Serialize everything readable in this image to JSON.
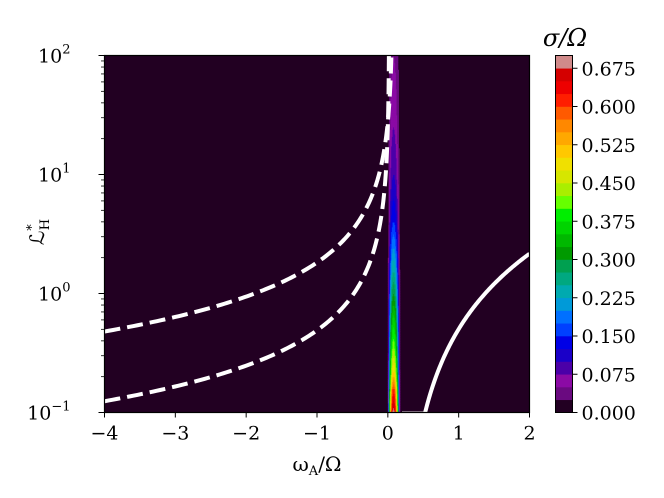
{
  "chart_data": {
    "type": "heatmap",
    "xlabel": "ωA/Ω",
    "ylabel": "ℒ*H",
    "xlim": [
      -4,
      2
    ],
    "ylim": [
      0.1,
      100
    ],
    "yscale": "log",
    "x_ticks": [
      {
        "value": -4,
        "label": "−4"
      },
      {
        "value": -3,
        "label": "−3"
      },
      {
        "value": -2,
        "label": "−2"
      },
      {
        "value": -1,
        "label": "−1"
      },
      {
        "value": 0,
        "label": "0"
      },
      {
        "value": 1,
        "label": "1"
      },
      {
        "value": 2,
        "label": "2"
      }
    ],
    "y_ticks": [
      {
        "value": 0.1,
        "base": "10",
        "exp": "−1"
      },
      {
        "value": 1,
        "base": "10",
        "exp": "0"
      },
      {
        "value": 10,
        "base": "10",
        "exp": "1"
      },
      {
        "value": 100,
        "base": "10",
        "exp": "2"
      }
    ],
    "colorbar": {
      "title": "σ/Ω",
      "min": 0.0,
      "max": 0.7,
      "levels": 28,
      "tick_labels": [
        "0.000",
        "0.075",
        "0.150",
        "0.225",
        "0.300",
        "0.375",
        "0.450",
        "0.525",
        "0.600",
        "0.675"
      ],
      "colors": [
        "#220022",
        "#6a0a80",
        "#8b0aa5",
        "#4b00a8",
        "#1a00c8",
        "#0000e6",
        "#0040ff",
        "#0070ff",
        "#009ad8",
        "#00aab0",
        "#00a880",
        "#00a050",
        "#009a00",
        "#00b800",
        "#00d400",
        "#00ee00",
        "#66ff00",
        "#aaee00",
        "#d6e600",
        "#f0e000",
        "#ffc800",
        "#ffa800",
        "#ff8800",
        "#ff5a00",
        "#ff1e00",
        "#ee0000",
        "#d40000",
        "#d08a8a"
      ]
    },
    "background_value": 0.0,
    "instability_band": {
      "x_left": 0.0,
      "x_right": 0.17,
      "peak_x": 0.08,
      "profile": [
        {
          "L": 0.1,
          "sigma": 0.69
        },
        {
          "L": 0.15,
          "sigma": 0.62
        },
        {
          "L": 0.22,
          "sigma": 0.5
        },
        {
          "L": 0.35,
          "sigma": 0.42
        },
        {
          "L": 0.6,
          "sigma": 0.36
        },
        {
          "L": 1.0,
          "sigma": 0.3
        },
        {
          "L": 2.0,
          "sigma": 0.22
        },
        {
          "L": 4.0,
          "sigma": 0.15
        },
        {
          "L": 10.0,
          "sigma": 0.1
        },
        {
          "L": 30.0,
          "sigma": 0.07
        },
        {
          "L": 100.0,
          "sigma": 0.05
        }
      ]
    },
    "curves": [
      {
        "style": "dashed",
        "color": "#ffffff",
        "kind": "pole",
        "amplitude": 1.95,
        "pole_x": 0.07
      },
      {
        "style": "dashed",
        "color": "#ffffff",
        "kind": "pole",
        "amplitude": 0.5,
        "pole_x": 0.02
      },
      {
        "style": "solid",
        "color": "#ffffff",
        "kind": "root",
        "start_x": 0.2,
        "coef": 0.75,
        "power": 1.8
      }
    ]
  }
}
